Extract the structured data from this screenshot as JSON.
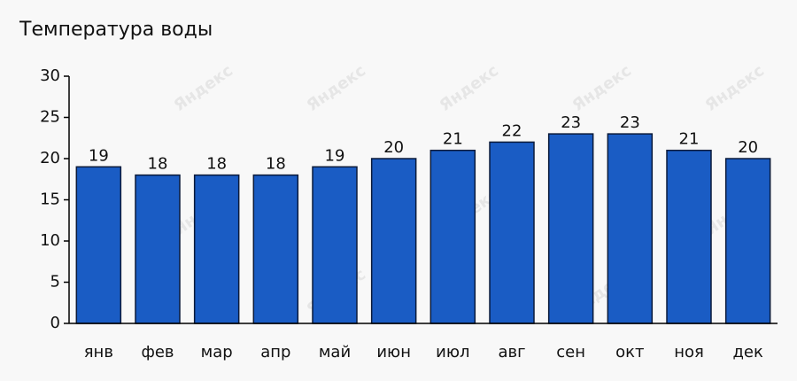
{
  "chart_data": {
    "type": "bar",
    "title": "Температура воды",
    "watermark": "Яндекс",
    "categories": [
      "янв",
      "фев",
      "мар",
      "апр",
      "май",
      "июн",
      "июл",
      "авг",
      "сен",
      "окт",
      "ноя",
      "дек"
    ],
    "values": [
      19,
      18,
      18,
      18,
      19,
      20,
      21,
      22,
      23,
      23,
      21,
      20
    ],
    "color": "#1a5cc4",
    "ylim": [
      0,
      30
    ],
    "yticks": [
      0,
      5,
      10,
      15,
      20,
      25,
      30
    ]
  }
}
